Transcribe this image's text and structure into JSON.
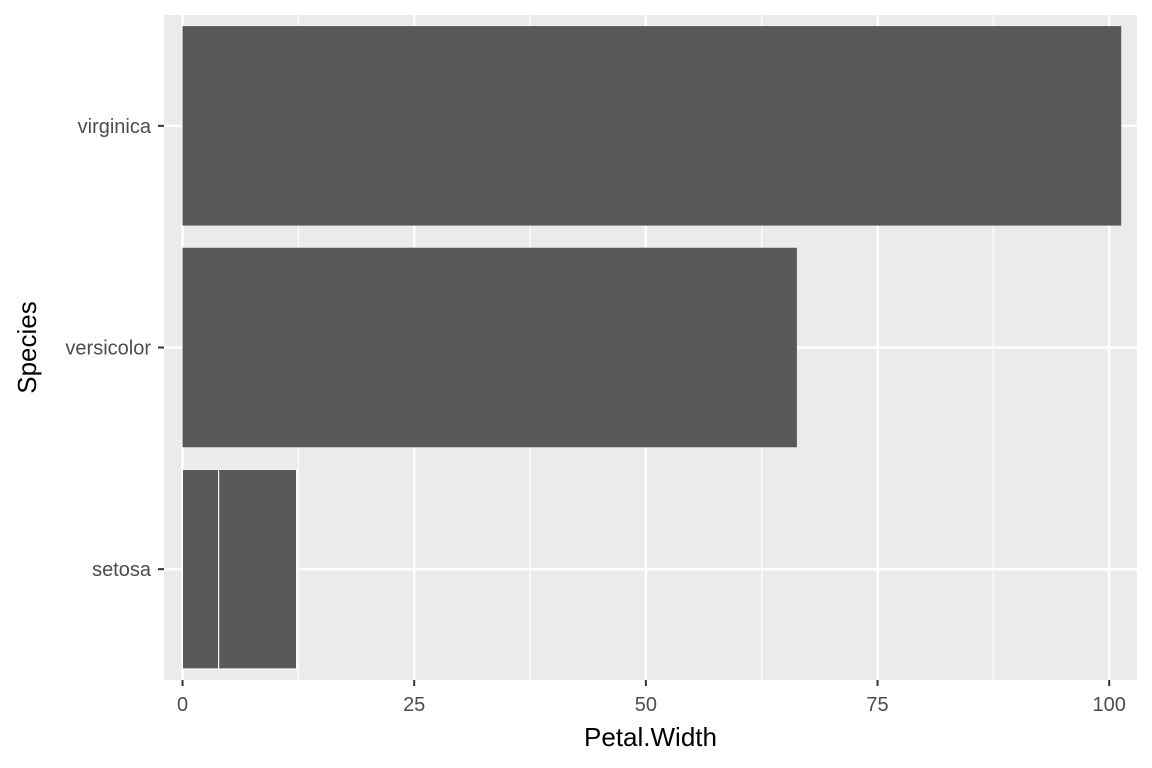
{
  "chart_data": {
    "type": "bar",
    "orientation": "horizontal",
    "stacked": true,
    "xlabel": "Petal.Width",
    "ylabel": "Species",
    "xlim": [
      -2,
      103
    ],
    "x_ticks": [
      0,
      25,
      50,
      75,
      100
    ],
    "x_tick_labels": [
      "0",
      "25",
      "50",
      "75",
      "100"
    ],
    "categories": [
      "setosa",
      "versicolor",
      "virginica"
    ],
    "segments": [
      [
        3.9,
        8.4
      ],
      [
        66.3
      ],
      [
        101.3
      ]
    ],
    "values": [
      12.3,
      66.3,
      101.3
    ],
    "grid": true,
    "legend": "none",
    "colors": {
      "panel": "#ebebeb",
      "grid_major": "#ffffff",
      "bar": "#595959",
      "segment_border": "#ffffff",
      "tick": "#333333",
      "tick_text": "#4d4d4d",
      "title_text": "#000000"
    }
  }
}
